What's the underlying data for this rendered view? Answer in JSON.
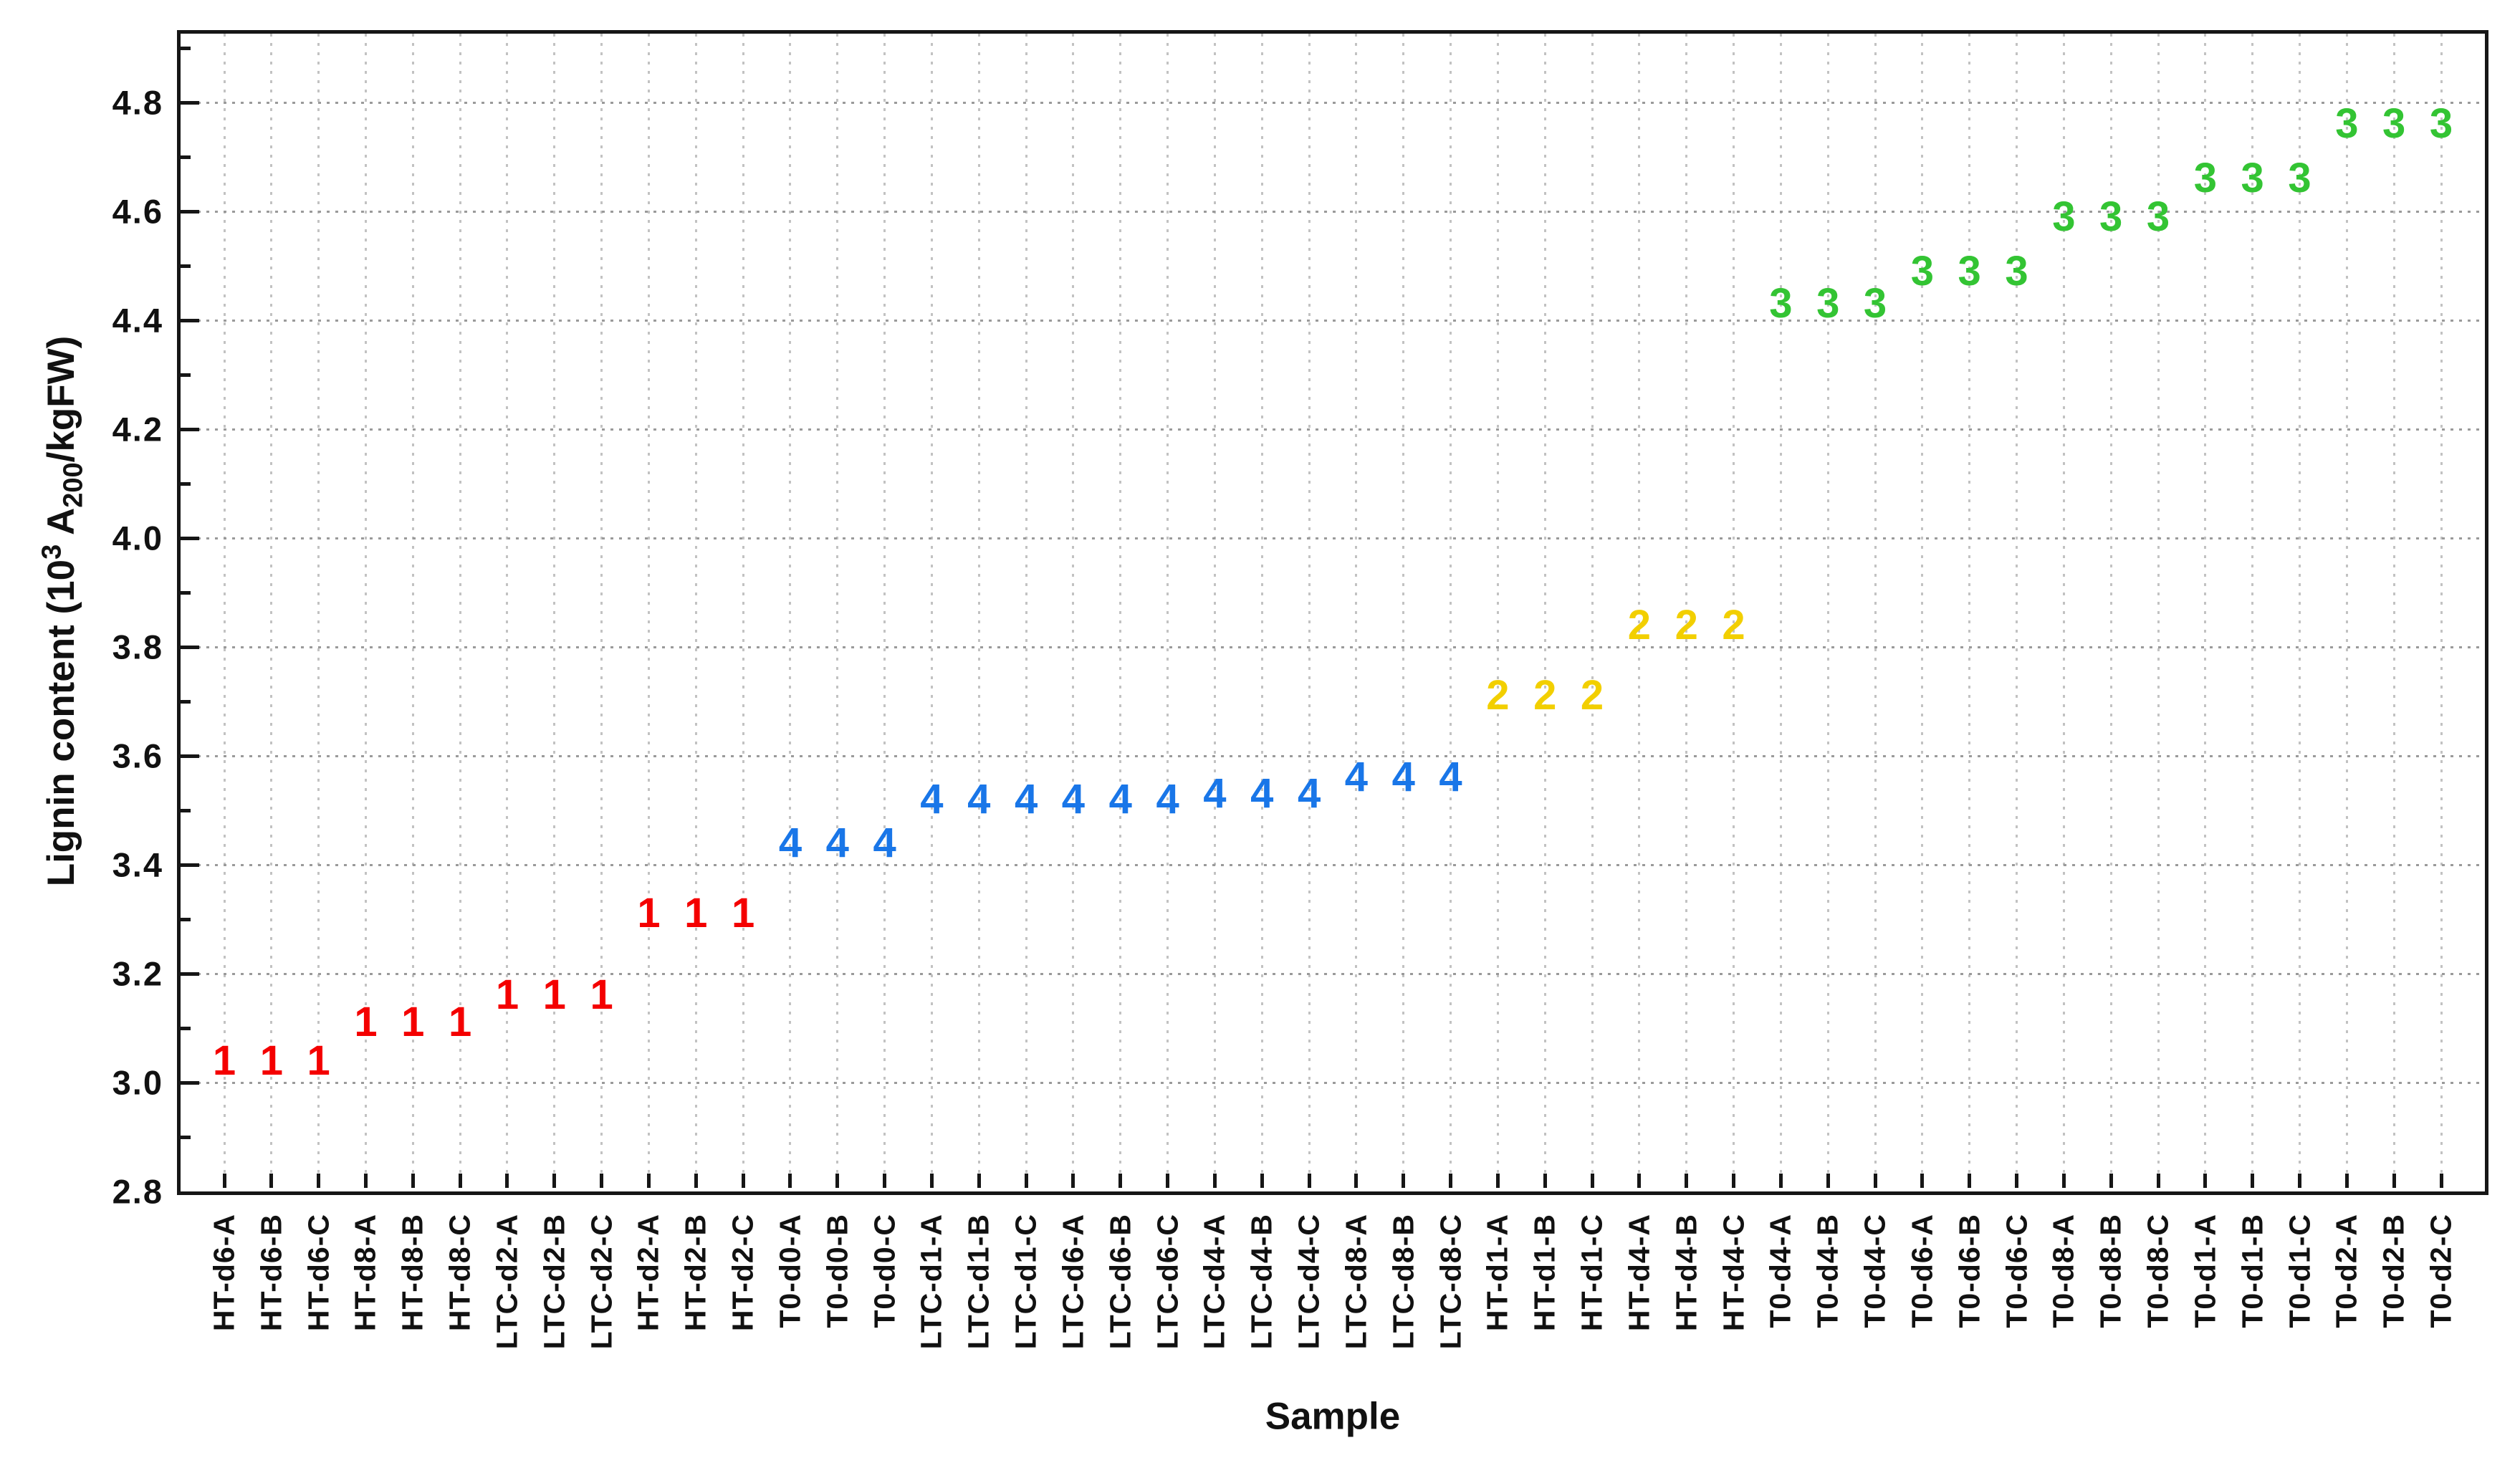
{
  "chart_data": {
    "type": "scatter",
    "title": "",
    "xlabel": "Sample",
    "ylabel": "Lignin content (10^3 A_200/kgFW)",
    "ylabel_parts": {
      "prefix": "Lignin content (10",
      "sup": "3",
      "mid": " A",
      "sub": "200",
      "suffix": "/kgFW)"
    },
    "ylim": [
      2.8,
      4.93
    ],
    "y_major_tick_step": 0.2,
    "y_minor_tick_step": 0.1,
    "y_tick_labels": [
      "2.8",
      "3.0",
      "3.2",
      "3.4",
      "3.6",
      "3.8",
      "4.0",
      "4.2",
      "4.4",
      "4.6",
      "4.8"
    ],
    "grid": true,
    "legend": "none",
    "marker_style": "cluster-number-glyphs",
    "cluster_colors": {
      "1": "#f40000",
      "2": "#f2cf00",
      "3": "#33c433",
      "4": "#1976e8"
    },
    "points": [
      {
        "sample": "HT-d6-A",
        "cluster": "1",
        "value": 3.04
      },
      {
        "sample": "HT-d6-B",
        "cluster": "1",
        "value": 3.04
      },
      {
        "sample": "HT-d6-C",
        "cluster": "1",
        "value": 3.04
      },
      {
        "sample": "HT-d8-A",
        "cluster": "1",
        "value": 3.11
      },
      {
        "sample": "HT-d8-B",
        "cluster": "1",
        "value": 3.11
      },
      {
        "sample": "HT-d8-C",
        "cluster": "1",
        "value": 3.11
      },
      {
        "sample": "LTC-d2-A",
        "cluster": "1",
        "value": 3.16
      },
      {
        "sample": "LTC-d2-B",
        "cluster": "1",
        "value": 3.16
      },
      {
        "sample": "LTC-d2-C",
        "cluster": "1",
        "value": 3.16
      },
      {
        "sample": "HT-d2-A",
        "cluster": "1",
        "value": 3.31
      },
      {
        "sample": "HT-d2-B",
        "cluster": "1",
        "value": 3.31
      },
      {
        "sample": "HT-d2-C",
        "cluster": "1",
        "value": 3.31
      },
      {
        "sample": "T0-d0-A",
        "cluster": "4",
        "value": 3.44
      },
      {
        "sample": "T0-d0-B",
        "cluster": "4",
        "value": 3.44
      },
      {
        "sample": "T0-d0-C",
        "cluster": "4",
        "value": 3.44
      },
      {
        "sample": "LTC-d1-A",
        "cluster": "4",
        "value": 3.52
      },
      {
        "sample": "LTC-d1-B",
        "cluster": "4",
        "value": 3.52
      },
      {
        "sample": "LTC-d1-C",
        "cluster": "4",
        "value": 3.52
      },
      {
        "sample": "LTC-d6-A",
        "cluster": "4",
        "value": 3.52
      },
      {
        "sample": "LTC-d6-B",
        "cluster": "4",
        "value": 3.52
      },
      {
        "sample": "LTC-d6-C",
        "cluster": "4",
        "value": 3.52
      },
      {
        "sample": "LTC-d4-A",
        "cluster": "4",
        "value": 3.53
      },
      {
        "sample": "LTC-d4-B",
        "cluster": "4",
        "value": 3.53
      },
      {
        "sample": "LTC-d4-C",
        "cluster": "4",
        "value": 3.53
      },
      {
        "sample": "LTC-d8-A",
        "cluster": "4",
        "value": 3.56
      },
      {
        "sample": "LTC-d8-B",
        "cluster": "4",
        "value": 3.56
      },
      {
        "sample": "LTC-d8-C",
        "cluster": "4",
        "value": 3.56
      },
      {
        "sample": "HT-d1-A",
        "cluster": "2",
        "value": 3.71
      },
      {
        "sample": "HT-d1-B",
        "cluster": "2",
        "value": 3.71
      },
      {
        "sample": "HT-d1-C",
        "cluster": "2",
        "value": 3.71
      },
      {
        "sample": "HT-d4-A",
        "cluster": "2",
        "value": 3.84
      },
      {
        "sample": "HT-d4-B",
        "cluster": "2",
        "value": 3.84
      },
      {
        "sample": "HT-d4-C",
        "cluster": "2",
        "value": 3.84
      },
      {
        "sample": "T0-d4-A",
        "cluster": "3",
        "value": 4.43
      },
      {
        "sample": "T0-d4-B",
        "cluster": "3",
        "value": 4.43
      },
      {
        "sample": "T0-d4-C",
        "cluster": "3",
        "value": 4.43
      },
      {
        "sample": "T0-d6-A",
        "cluster": "3",
        "value": 4.49
      },
      {
        "sample": "T0-d6-B",
        "cluster": "3",
        "value": 4.49
      },
      {
        "sample": "T0-d6-C",
        "cluster": "3",
        "value": 4.49
      },
      {
        "sample": "T0-d8-A",
        "cluster": "3",
        "value": 4.59
      },
      {
        "sample": "T0-d8-B",
        "cluster": "3",
        "value": 4.59
      },
      {
        "sample": "T0-d8-C",
        "cluster": "3",
        "value": 4.59
      },
      {
        "sample": "T0-d1-A",
        "cluster": "3",
        "value": 4.66
      },
      {
        "sample": "T0-d1-B",
        "cluster": "3",
        "value": 4.66
      },
      {
        "sample": "T0-d1-C",
        "cluster": "3",
        "value": 4.66
      },
      {
        "sample": "T0-d2-A",
        "cluster": "3",
        "value": 4.76
      },
      {
        "sample": "T0-d2-B",
        "cluster": "3",
        "value": 4.76
      },
      {
        "sample": "T0-d2-C",
        "cluster": "3",
        "value": 4.76
      }
    ]
  }
}
